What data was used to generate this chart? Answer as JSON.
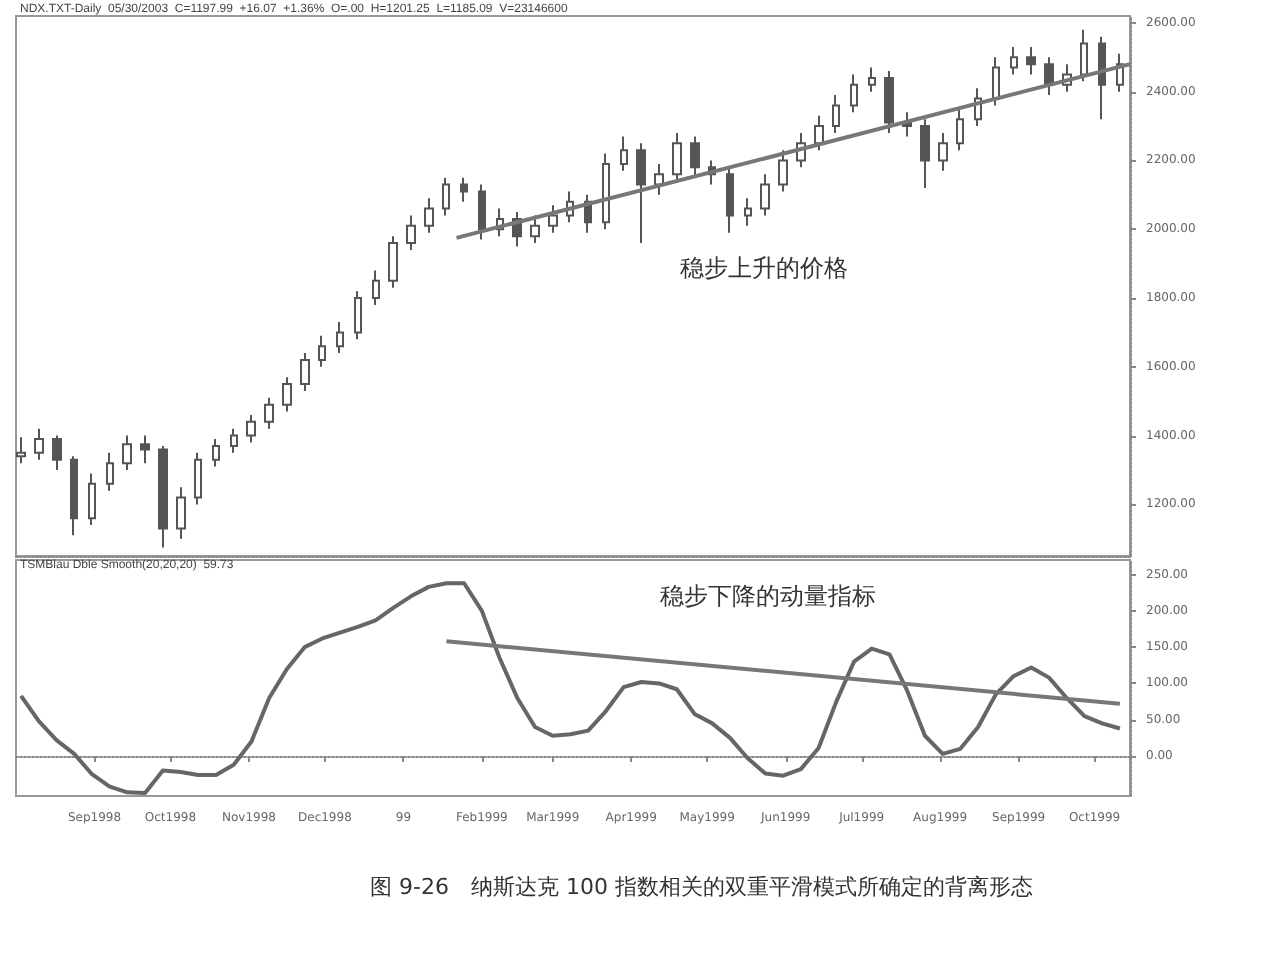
{
  "chart_data": [
    {
      "type": "candlestick",
      "title": "NDX.TXT-Daily  05/30/2003  C=1197.99  +16.07  +1.36%  O=.00  H=1201.25  L=1185.09  V=23146600",
      "color": "#555555",
      "x": [
        "1998-08-03",
        "1998-08-10",
        "1998-08-17",
        "1998-08-24",
        "1998-08-31",
        "1998-09-07",
        "1998-09-14",
        "1998-09-21",
        "1998-09-28",
        "1998-10-05",
        "1998-10-12",
        "1998-10-19",
        "1998-10-26",
        "1998-11-02",
        "1998-11-09",
        "1998-11-16",
        "1998-11-23",
        "1998-11-30",
        "1998-12-07",
        "1998-12-14",
        "1998-12-21",
        "1998-12-28",
        "1999-01-04",
        "1999-01-11",
        "1999-01-18",
        "1999-01-25",
        "1999-02-01",
        "1999-02-08",
        "1999-02-15",
        "1999-02-22",
        "1999-03-01",
        "1999-03-08",
        "1999-03-15",
        "1999-03-22",
        "1999-03-29",
        "1999-04-05",
        "1999-04-12",
        "1999-04-19",
        "1999-04-26",
        "1999-05-03",
        "1999-05-10",
        "1999-05-17",
        "1999-05-24",
        "1999-05-31",
        "1999-06-07",
        "1999-06-14",
        "1999-06-21",
        "1999-06-28",
        "1999-07-05",
        "1999-07-12",
        "1999-07-19",
        "1999-07-26",
        "1999-08-02",
        "1999-08-09",
        "1999-08-16",
        "1999-08-23",
        "1999-08-30",
        "1999-09-06",
        "1999-09-13",
        "1999-09-20",
        "1999-09-27",
        "1999-10-04",
        "1999-10-11"
      ],
      "ohlc": [
        [
          1340,
          1395,
          1320,
          1350
        ],
        [
          1350,
          1420,
          1330,
          1390
        ],
        [
          1390,
          1400,
          1300,
          1330
        ],
        [
          1330,
          1340,
          1110,
          1160
        ],
        [
          1160,
          1290,
          1140,
          1260
        ],
        [
          1260,
          1350,
          1240,
          1320
        ],
        [
          1320,
          1400,
          1300,
          1375
        ],
        [
          1375,
          1400,
          1320,
          1360
        ],
        [
          1360,
          1370,
          1075,
          1130
        ],
        [
          1130,
          1250,
          1100,
          1220
        ],
        [
          1220,
          1350,
          1200,
          1330
        ],
        [
          1330,
          1390,
          1310,
          1370
        ],
        [
          1370,
          1420,
          1350,
          1400
        ],
        [
          1400,
          1460,
          1380,
          1440
        ],
        [
          1440,
          1510,
          1420,
          1490
        ],
        [
          1490,
          1570,
          1470,
          1550
        ],
        [
          1550,
          1640,
          1530,
          1620
        ],
        [
          1620,
          1690,
          1600,
          1660
        ],
        [
          1660,
          1730,
          1640,
          1700
        ],
        [
          1700,
          1820,
          1680,
          1800
        ],
        [
          1800,
          1880,
          1780,
          1850
        ],
        [
          1850,
          1980,
          1830,
          1960
        ],
        [
          1960,
          2040,
          1940,
          2010
        ],
        [
          2010,
          2090,
          1990,
          2060
        ],
        [
          2060,
          2150,
          2040,
          2130
        ],
        [
          2130,
          2150,
          2080,
          2110
        ],
        [
          2110,
          2130,
          1970,
          2000
        ],
        [
          2000,
          2060,
          1980,
          2030
        ],
        [
          2030,
          2050,
          1950,
          1980
        ],
        [
          1980,
          2040,
          1960,
          2010
        ],
        [
          2010,
          2070,
          1990,
          2040
        ],
        [
          2040,
          2110,
          2020,
          2080
        ],
        [
          2080,
          2100,
          1990,
          2020
        ],
        [
          2020,
          2220,
          2000,
          2190
        ],
        [
          2190,
          2270,
          2170,
          2230
        ],
        [
          2230,
          2250,
          1960,
          2130
        ],
        [
          2130,
          2190,
          2100,
          2160
        ],
        [
          2160,
          2280,
          2140,
          2250
        ],
        [
          2250,
          2270,
          2150,
          2180
        ],
        [
          2180,
          2200,
          2130,
          2160
        ],
        [
          2160,
          2180,
          1990,
          2040
        ],
        [
          2040,
          2090,
          2010,
          2060
        ],
        [
          2060,
          2160,
          2040,
          2130
        ],
        [
          2130,
          2230,
          2110,
          2200
        ],
        [
          2200,
          2280,
          2180,
          2250
        ],
        [
          2250,
          2330,
          2230,
          2300
        ],
        [
          2300,
          2390,
          2280,
          2360
        ],
        [
          2360,
          2450,
          2340,
          2420
        ],
        [
          2420,
          2470,
          2400,
          2440
        ],
        [
          2440,
          2460,
          2280,
          2310
        ],
        [
          2310,
          2340,
          2270,
          2300
        ],
        [
          2300,
          2320,
          2120,
          2200
        ],
        [
          2200,
          2280,
          2170,
          2250
        ],
        [
          2250,
          2350,
          2230,
          2320
        ],
        [
          2320,
          2410,
          2300,
          2380
        ],
        [
          2380,
          2500,
          2360,
          2470
        ],
        [
          2470,
          2530,
          2450,
          2500
        ],
        [
          2500,
          2530,
          2450,
          2480
        ],
        [
          2480,
          2500,
          2390,
          2420
        ],
        [
          2420,
          2480,
          2400,
          2450
        ],
        [
          2450,
          2580,
          2430,
          2540
        ],
        [
          2540,
          2560,
          2320,
          2420
        ],
        [
          2420,
          2510,
          2400,
          2480
        ]
      ],
      "series": [
        {
          "type": "line",
          "color": "#777777",
          "x": [
            "1999-01-22",
            "1999-10-15"
          ],
          "values": [
            1975,
            2480
          ]
        }
      ],
      "xlim": [
        "1998-08-01",
        "1999-10-15"
      ],
      "ylim": [
        1050,
        2620
      ],
      "yticks": [
        {
          "value": 1200,
          "label": "1200.00"
        },
        {
          "value": 1400,
          "label": "1400.00"
        },
        {
          "value": 1600,
          "label": "1600.00"
        },
        {
          "value": 1800,
          "label": "1800.00"
        },
        {
          "value": 2000,
          "label": "2000.00"
        },
        {
          "value": 2200,
          "label": "2200.00"
        },
        {
          "value": 2400,
          "label": "2400.00"
        },
        {
          "value": 2600,
          "label": "2600.00"
        }
      ],
      "tick_labels": "y",
      "annotations": [
        "稳步上升的价格"
      ]
    },
    {
      "type": "line",
      "title": "TSMBlau Dble Smooth(20,20,20)  59.73",
      "marker": "none",
      "series": [
        {
          "color": "#666666",
          "x": [
            "1998-08-03",
            "1998-08-10",
            "1998-08-17",
            "1998-08-24",
            "1998-08-31",
            "1998-09-07",
            "1998-09-14",
            "1998-09-21",
            "1998-09-28",
            "1998-10-05",
            "1998-10-12",
            "1998-10-19",
            "1998-10-26",
            "1998-11-02",
            "1998-11-09",
            "1998-11-16",
            "1998-11-23",
            "1998-11-30",
            "1998-12-07",
            "1998-12-14",
            "1998-12-21",
            "1998-12-28",
            "1999-01-04",
            "1999-01-11",
            "1999-01-18",
            "1999-01-25",
            "1999-02-01",
            "1999-02-08",
            "1999-02-15",
            "1999-02-22",
            "1999-03-01",
            "1999-03-08",
            "1999-03-15",
            "1999-03-22",
            "1999-03-29",
            "1999-04-05",
            "1999-04-12",
            "1999-04-19",
            "1999-04-26",
            "1999-05-03",
            "1999-05-10",
            "1999-05-17",
            "1999-05-24",
            "1999-05-31",
            "1999-06-07",
            "1999-06-14",
            "1999-06-21",
            "1999-06-28",
            "1999-07-05",
            "1999-07-12",
            "1999-07-19",
            "1999-07-26",
            "1999-08-02",
            "1999-08-09",
            "1999-08-16",
            "1999-08-23",
            "1999-08-30",
            "1999-09-06",
            "1999-09-13",
            "1999-09-20",
            "1999-09-27",
            "1999-10-04",
            "1999-10-11"
          ],
          "values": [
            83,
            48,
            22,
            3,
            -25,
            -42,
            -50,
            -51,
            -20,
            -22,
            -26,
            -26,
            -12,
            20,
            80,
            120,
            150,
            162,
            170,
            178,
            187,
            204,
            220,
            233,
            238,
            238,
            200,
            135,
            80,
            40,
            28,
            30,
            35,
            62,
            95,
            102,
            100,
            92,
            58,
            45,
            25,
            -3,
            -24,
            -27,
            -18,
            11,
            75,
            130,
            148,
            140,
            90,
            28,
            3,
            10,
            40,
            85,
            110,
            122,
            108,
            80,
            55,
            45,
            38
          ]
        },
        {
          "color": "#777777",
          "x": [
            "1999-01-18",
            "1999-10-11"
          ],
          "values": [
            158,
            72
          ]
        }
      ],
      "xlim": [
        "1998-08-01",
        "1999-10-15"
      ],
      "xticks": [
        {
          "value": "1998-09-01",
          "label": "Sep1998"
        },
        {
          "value": "1998-10-01",
          "label": "Oct1998"
        },
        {
          "value": "1998-11-01",
          "label": "Nov1998"
        },
        {
          "value": "1998-12-01",
          "label": "Dec1998"
        },
        {
          "value": "1999-01-01",
          "label": "99"
        },
        {
          "value": "1999-02-01",
          "label": "Feb1999"
        },
        {
          "value": "1999-03-01",
          "label": "Mar1999"
        },
        {
          "value": "1999-04-01",
          "label": "Apr1999"
        },
        {
          "value": "1999-05-01",
          "label": "May1999"
        },
        {
          "value": "1999-06-01",
          "label": "Jun1999"
        },
        {
          "value": "1999-07-01",
          "label": "Jul1999"
        },
        {
          "value": "1999-08-01",
          "label": "Aug1999"
        },
        {
          "value": "1999-09-01",
          "label": "Sep1999"
        },
        {
          "value": "1999-10-01",
          "label": "Oct1999"
        }
      ],
      "ylim": [
        -55,
        270
      ],
      "yticks": [
        {
          "value": 0,
          "label": "0.00"
        },
        {
          "value": 50,
          "label": "50.00"
        },
        {
          "value": 100,
          "label": "100.00"
        },
        {
          "value": 150,
          "label": "150.00"
        },
        {
          "value": 200,
          "label": "200.00"
        },
        {
          "value": 250,
          "label": "250.00"
        }
      ],
      "annotations": [
        "稳步下降的动量指标",
        "图 9-26　纳斯达克 100 指数相关的双重平滑模式所确定的背离形态"
      ]
    }
  ]
}
